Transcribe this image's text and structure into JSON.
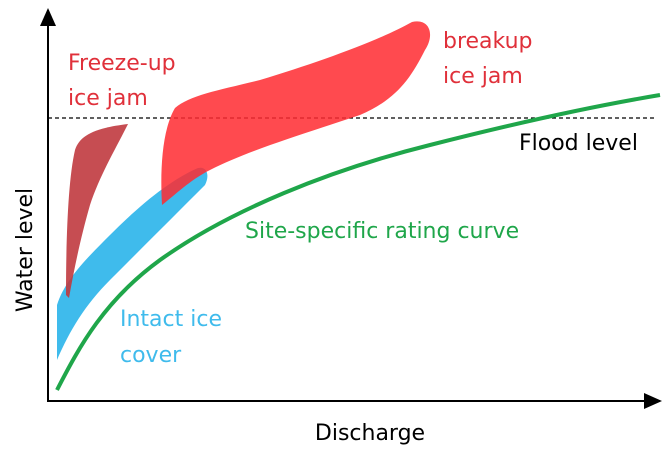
{
  "axes": {
    "y_label": "Water level",
    "x_label": "Discharge"
  },
  "labels": {
    "freeze_up": [
      "Freeze-up",
      "ice jam"
    ],
    "breakup": [
      "breakup",
      "ice jam"
    ],
    "flood_level": "Flood level",
    "rating_curve": "Site-specific rating curve",
    "intact_ice": [
      "Intact ice",
      "cover"
    ]
  }
}
